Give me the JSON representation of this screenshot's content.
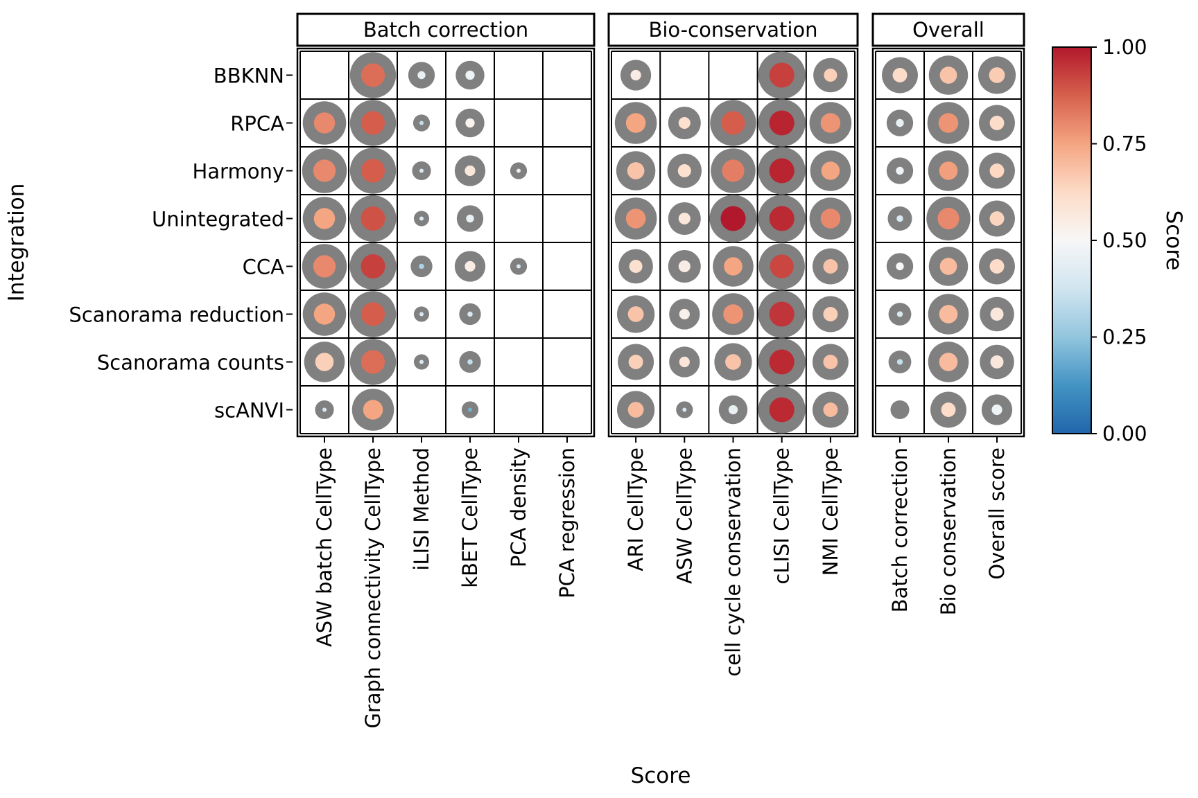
{
  "chart_data": {
    "type": "dotplot",
    "xlabel": "Score",
    "ylabel": "Integration",
    "rows": [
      "BBKNN",
      "RPCA",
      "Harmony",
      "Unintegrated",
      "CCA",
      "Scanorama reduction",
      "Scanorama counts",
      "scANVI"
    ],
    "colorbar": {
      "label": "Score",
      "ticks": [
        "0.00",
        "0.25",
        "0.50",
        "0.75",
        "1.00"
      ],
      "range": [
        0,
        1
      ],
      "colors": [
        "#2166ac",
        "#4393c3",
        "#92c5de",
        "#d1e5f0",
        "#f7f7f7",
        "#fddbc7",
        "#f4a582",
        "#d6604d",
        "#b2182b"
      ]
    },
    "panels": [
      {
        "title": "Batch correction",
        "columns": [
          "ASW batch CellType",
          "Graph connectivity CellType",
          "iLISI Method",
          "kBET CellType",
          "PCA density",
          "PCA regression"
        ],
        "values": [
          [
            null,
            0.85,
            0.45,
            0.47,
            null,
            null
          ],
          [
            0.8,
            0.88,
            0.35,
            0.52,
            null,
            null
          ],
          [
            0.8,
            0.88,
            0.4,
            0.57,
            0.45,
            null
          ],
          [
            0.75,
            0.9,
            0.4,
            0.45,
            null,
            null
          ],
          [
            0.8,
            0.93,
            0.3,
            0.55,
            0.4,
            null
          ],
          [
            0.75,
            0.88,
            0.4,
            0.4,
            null,
            null
          ],
          [
            0.65,
            0.85,
            0.4,
            0.35,
            null,
            null
          ],
          [
            0.4,
            0.75,
            null,
            0.2,
            null,
            null
          ]
        ],
        "sizes": [
          [
            null,
            0.9,
            0.3,
            0.35,
            null,
            null
          ],
          [
            0.8,
            0.9,
            0.12,
            0.35,
            null,
            null
          ],
          [
            0.85,
            0.9,
            0.15,
            0.4,
            0.12,
            null
          ],
          [
            0.8,
            0.92,
            0.1,
            0.3,
            null,
            null
          ],
          [
            0.85,
            0.92,
            0.2,
            0.4,
            0.12,
            null
          ],
          [
            0.8,
            0.9,
            0.1,
            0.2,
            null,
            null
          ],
          [
            0.7,
            0.9,
            0.1,
            0.2,
            null,
            null
          ],
          [
            0.15,
            0.75,
            null,
            0.12,
            null,
            null
          ]
        ]
      },
      {
        "title": "Bio-conservation",
        "columns": [
          "ARI CellType",
          "ASW CellType",
          "cell cycle conservation",
          "cLISI CellType",
          "NMI CellType"
        ],
        "values": [
          [
            0.55,
            null,
            null,
            0.93,
            0.65
          ],
          [
            0.75,
            0.6,
            0.88,
            0.98,
            0.78
          ],
          [
            0.68,
            0.6,
            0.82,
            0.98,
            0.75
          ],
          [
            0.78,
            0.57,
            1.0,
            0.97,
            0.8
          ],
          [
            0.6,
            0.55,
            0.75,
            0.92,
            0.68
          ],
          [
            0.68,
            0.53,
            0.78,
            0.95,
            0.65
          ],
          [
            0.65,
            0.58,
            0.68,
            0.97,
            0.68
          ],
          [
            0.7,
            0.4,
            0.45,
            0.97,
            0.7
          ]
        ],
        "sizes": [
          [
            0.4,
            null,
            null,
            0.95,
            0.5
          ],
          [
            0.75,
            0.45,
            0.9,
            0.95,
            0.75
          ],
          [
            0.65,
            0.5,
            0.85,
            0.95,
            0.7
          ],
          [
            0.75,
            0.45,
            0.95,
            0.95,
            0.75
          ],
          [
            0.5,
            0.45,
            0.7,
            0.9,
            0.55
          ],
          [
            0.6,
            0.4,
            0.75,
            0.95,
            0.55
          ],
          [
            0.55,
            0.4,
            0.6,
            0.95,
            0.55
          ],
          [
            0.6,
            0.12,
            0.35,
            0.95,
            0.55
          ]
        ]
      },
      {
        "title": "Overall",
        "columns": [
          "Batch correction",
          "Bio conservation",
          "Overall score"
        ],
        "values": [
          [
            0.62,
            0.68,
            0.66
          ],
          [
            0.45,
            0.78,
            0.62
          ],
          [
            0.47,
            0.76,
            0.63
          ],
          [
            0.4,
            0.8,
            0.64
          ],
          [
            0.5,
            0.7,
            0.62
          ],
          [
            0.4,
            0.7,
            0.57
          ],
          [
            0.35,
            0.7,
            0.57
          ],
          [
            null,
            0.62,
            0.47
          ]
        ],
        "sizes": [
          [
            0.55,
            0.65,
            0.6
          ],
          [
            0.3,
            0.75,
            0.55
          ],
          [
            0.3,
            0.7,
            0.55
          ],
          [
            0.25,
            0.82,
            0.55
          ],
          [
            0.3,
            0.65,
            0.55
          ],
          [
            0.22,
            0.7,
            0.5
          ],
          [
            0.22,
            0.7,
            0.5
          ],
          [
            0.15,
            0.55,
            0.4
          ]
        ]
      }
    ]
  }
}
